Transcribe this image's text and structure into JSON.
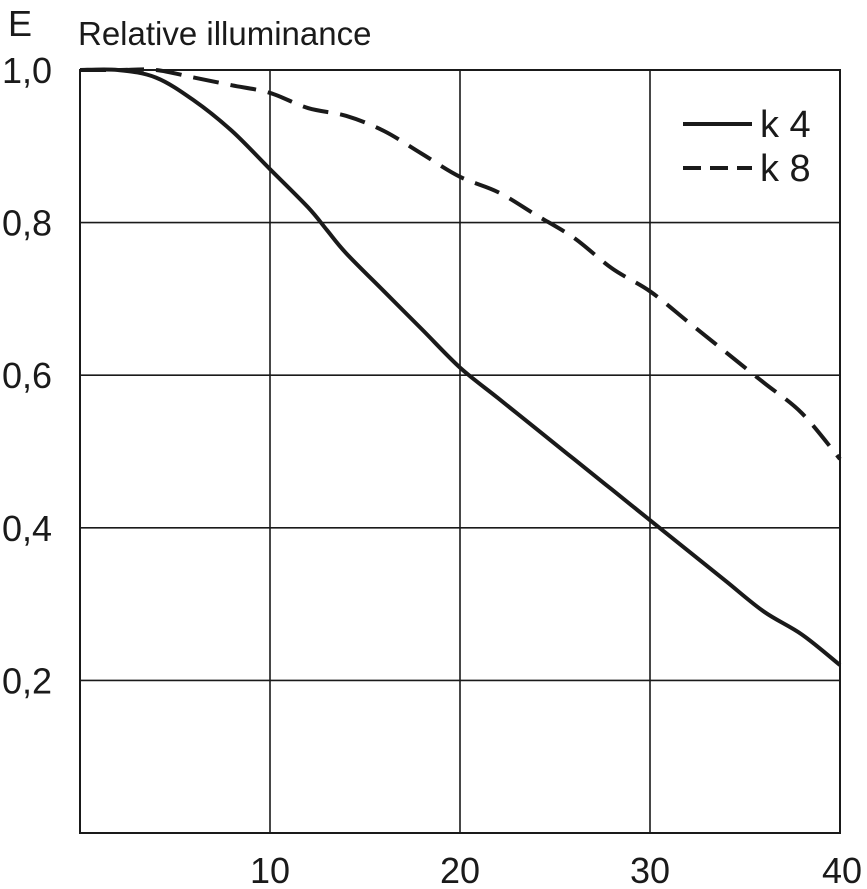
{
  "chart_data": {
    "type": "line",
    "ylabel_symbol": "E",
    "ylabel": "Relative illuminance",
    "xlim": [
      0,
      40
    ],
    "ylim": [
      0,
      1.0
    ],
    "x_ticks": [
      10,
      20,
      30,
      40
    ],
    "x_tick_labels": [
      "10",
      "20",
      "30",
      "40"
    ],
    "y_ticks": [
      0.2,
      0.4,
      0.6,
      0.8,
      1.0
    ],
    "y_tick_labels": [
      "0,2",
      "0,4",
      "0,6",
      "0,8",
      "1,0"
    ],
    "grid": true,
    "legend_position": "top-right",
    "series": [
      {
        "name": "k 4",
        "style": "solid",
        "x": [
          0,
          2,
          4,
          6,
          8,
          10,
          12,
          13,
          14,
          16,
          18,
          20,
          22,
          24,
          26,
          28,
          30,
          32,
          34,
          36,
          38,
          40
        ],
        "y": [
          1.0,
          1.0,
          0.99,
          0.96,
          0.92,
          0.87,
          0.82,
          0.79,
          0.76,
          0.71,
          0.66,
          0.61,
          0.57,
          0.53,
          0.49,
          0.45,
          0.41,
          0.37,
          0.33,
          0.29,
          0.26,
          0.22
        ]
      },
      {
        "name": "k 8",
        "style": "dashed",
        "x": [
          0,
          2,
          4,
          6,
          8,
          10,
          12,
          14,
          16,
          18,
          20,
          22,
          24,
          26,
          28,
          30,
          32,
          34,
          36,
          38,
          40
        ],
        "y": [
          1.0,
          1.0,
          1.0,
          0.99,
          0.98,
          0.97,
          0.95,
          0.94,
          0.92,
          0.89,
          0.86,
          0.84,
          0.81,
          0.78,
          0.74,
          0.71,
          0.67,
          0.63,
          0.59,
          0.55,
          0.49
        ]
      }
    ],
    "colors": {
      "line": "#1a1a1a",
      "grid": "#1a1a1a",
      "background": "#ffffff"
    }
  }
}
